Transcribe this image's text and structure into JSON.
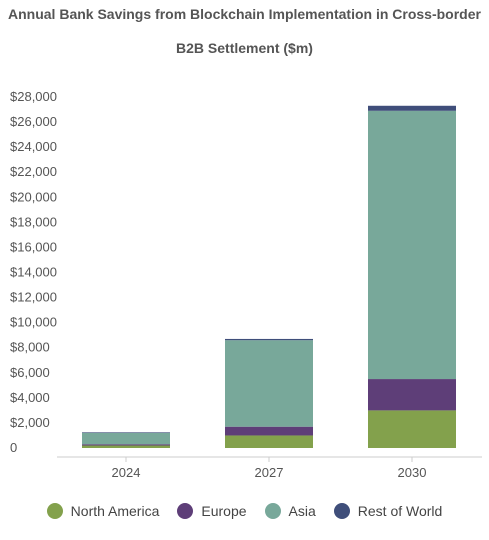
{
  "chart_data": {
    "type": "bar",
    "stacked": true,
    "title_line_1": "Annual Bank Savings from Blockchain Implementation in Cross-border",
    "title_line_2": "B2B Settlement ($m)",
    "categories": [
      "2024",
      "2027",
      "2030"
    ],
    "ylim": [
      0,
      28000
    ],
    "yticks": [
      0,
      2000,
      4000,
      6000,
      8000,
      10000,
      12000,
      14000,
      16000,
      18000,
      20000,
      22000,
      24000,
      26000,
      28000
    ],
    "ytick_labels": [
      "0",
      "$2,000",
      "$4,000",
      "$6,000",
      "$8,000",
      "$10,000",
      "$12,000",
      "$14,000",
      "$16,000",
      "$18,000",
      "$20,000",
      "$22,000",
      "$24,000",
      "$26,000",
      "$28,000"
    ],
    "grid": false,
    "legend_position": "bottom",
    "series": [
      {
        "name": "North America",
        "color": "#83a14c",
        "values": [
          200,
          1000,
          3000
        ]
      },
      {
        "name": "Europe",
        "color": "#5e3e78",
        "values": [
          100,
          700,
          2500
        ]
      },
      {
        "name": "Asia",
        "color": "#78a89a",
        "values": [
          900,
          6900,
          21400
        ]
      },
      {
        "name": "Rest of World",
        "color": "#3f4e7a",
        "values": [
          50,
          100,
          400
        ]
      }
    ]
  }
}
